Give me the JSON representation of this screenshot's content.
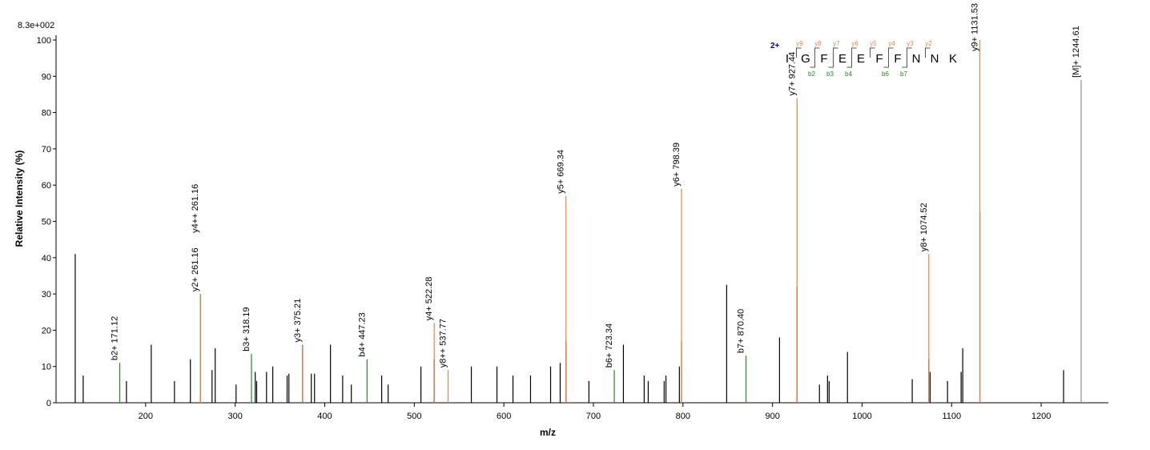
{
  "chart_data": {
    "type": "spectrum",
    "top_label": "8.3e+002",
    "x_label": "m/z",
    "y_label": "Relative   Intensity (%)",
    "xlim": [
      100,
      1275
    ],
    "ylim": [
      0,
      100
    ],
    "xticks": [
      200,
      300,
      400,
      500,
      600,
      700,
      800,
      900,
      1000,
      1100,
      1200
    ],
    "yticks": [
      0,
      10,
      20,
      30,
      40,
      50,
      60,
      70,
      80,
      90,
      100
    ],
    "series": [
      {
        "color": "#000000",
        "x": [
          121.4,
          130.3,
          178.6,
          206.3,
          232.2,
          250,
          261.16,
          274.2,
          277.7,
          301,
          322.4,
          324,
          335,
          342,
          358,
          360,
          375.21,
          385,
          388.6,
          406.4,
          420,
          429.7,
          463.6,
          470.8,
          507.4,
          522.28,
          563.7,
          592.3,
          610.2,
          629.8,
          652.2,
          662.9,
          669.34,
          695,
          733.5,
          756.7,
          761.2,
          779,
          781,
          796,
          798.39,
          848.8,
          907.8,
          927.44,
          952.4,
          961.4,
          963.2,
          983.7,
          1056,
          1074.52,
          1076,
          1095.4,
          1110.6,
          1112.4,
          1131.53,
          1225
        ],
        "values": [
          41,
          7.5,
          6,
          16,
          6,
          12,
          30,
          9,
          15,
          5,
          8.5,
          6,
          8.5,
          10,
          7.5,
          8,
          16,
          8,
          8,
          16,
          7.5,
          5,
          7.5,
          5,
          10,
          12,
          10,
          10,
          7.5,
          7.5,
          10,
          11,
          17,
          6,
          16,
          7.5,
          6,
          6,
          7.5,
          10,
          17,
          32.5,
          18,
          32,
          5,
          7.5,
          6,
          14,
          6.5,
          12,
          8.5,
          6,
          8.5,
          15,
          52.5,
          9
        ]
      },
      {
        "color": "#e8864a",
        "x": [
          261.16,
          261.16,
          375.21,
          522.28,
          537.77,
          669.34,
          798.39,
          927.44,
          1074.52,
          1131.53
        ],
        "values": [
          30,
          30,
          16,
          22,
          9,
          57,
          59,
          84,
          41,
          100
        ],
        "labels": [
          "y2+ 261.16",
          "y4++ 261.16",
          "y3+ 375.21",
          "y4+ 522.28",
          "y8++ 537.77",
          "y5+ 669.34",
          "y6+ 798.39",
          "y7+ 927.44",
          "y8+ 1074.52",
          "y9+ 1131.53"
        ]
      },
      {
        "color": "#1f8a1f",
        "x": [
          171.12,
          318.19,
          447.23,
          723.34,
          870.4
        ],
        "values": [
          11,
          13.5,
          12,
          9,
          13
        ],
        "labels": [
          "b2+ 171.12",
          "b3+ 318.19",
          "b4+ 447.23",
          "b6+ 723.34",
          "b7+ 870.40"
        ]
      },
      {
        "color": "#909090",
        "x": [
          1244.61
        ],
        "values": [
          89
        ],
        "labels": [
          "[M]+ 1244.61"
        ]
      }
    ],
    "sequence": {
      "charge": "2+",
      "residues": [
        "I",
        "G",
        "F",
        "E",
        "E",
        "F",
        "F",
        "N",
        "N",
        "K"
      ],
      "y_ions": [
        "y9",
        "y8",
        "y7",
        "y6",
        "y5",
        "y4",
        "y3",
        "y2"
      ],
      "b_ions": [
        "b2",
        "b3",
        "b4",
        "b6",
        "b7"
      ]
    }
  }
}
